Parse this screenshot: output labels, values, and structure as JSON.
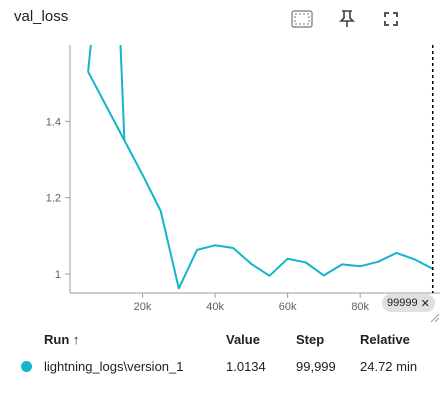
{
  "header": {
    "title": "val_loss",
    "tools": [
      "fit-domain-icon",
      "pin-icon",
      "fullscreen-icon"
    ]
  },
  "colors": {
    "series": "#12b5cb",
    "axis": "#9e9e9e",
    "cursor": "#000000"
  },
  "cursor_step_label": "99999",
  "table": {
    "headers": {
      "run": "Run ↑",
      "value": "Value",
      "step": "Step",
      "relative": "Relative"
    },
    "rows": [
      {
        "run": "lightning_logs\\version_1",
        "value": "1.0134",
        "step": "99,999",
        "relative": "24.72 min"
      }
    ]
  },
  "chart_data": {
    "type": "line",
    "title": "val_loss",
    "xlabel": "",
    "ylabel": "",
    "x_ticks": [
      "20k",
      "40k",
      "60k",
      "80k"
    ],
    "x_tick_values": [
      20000,
      40000,
      60000,
      80000
    ],
    "y_ticks": [
      "1",
      "1.2",
      "1.4"
    ],
    "y_tick_values": [
      1.0,
      1.2,
      1.4
    ],
    "xlim": [
      0,
      102000
    ],
    "ylim": [
      0.95,
      1.6
    ],
    "series": [
      {
        "x": [
          5000,
          15000,
          20000,
          25000,
          30000,
          35000,
          40000,
          45000,
          50000,
          55000,
          60000,
          65000,
          70000,
          75000,
          80000,
          85000,
          90000,
          95000,
          99999
        ],
        "y": [
          1.53,
          1.35,
          1.26,
          1.165,
          0.962,
          1.063,
          1.075,
          1.068,
          1.026,
          0.995,
          1.04,
          1.03,
          0.996,
          1.025,
          1.02,
          1.032,
          1.055,
          1.038,
          1.0134
        ]
      }
    ],
    "cursor_x": 99999,
    "grid": false,
    "legend": "none"
  }
}
